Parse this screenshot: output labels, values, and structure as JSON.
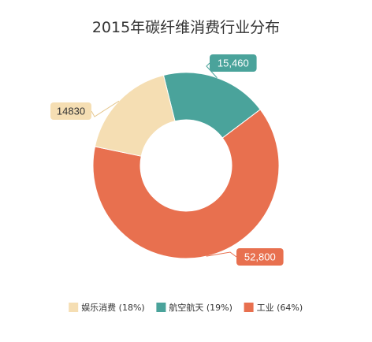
{
  "chart_data": {
    "type": "pie",
    "variant": "donut",
    "title": "2015年碳纤维消费行业分布",
    "slices": [
      {
        "name": "娱乐消费",
        "value": 14830,
        "label": "14830",
        "percent_label": "(18%)",
        "color": "#f5deb3",
        "label_text_color": "#333333"
      },
      {
        "name": "航空航天",
        "value": 15460,
        "label": "15,460",
        "percent_label": "(19%)",
        "color": "#4aa39b",
        "label_text_color": "#ffffff"
      },
      {
        "name": "工业",
        "value": 52800,
        "label": "52,800",
        "percent_label": "(64%)",
        "color": "#e8704f",
        "label_text_color": "#ffffff"
      }
    ],
    "legend_position": "bottom"
  }
}
